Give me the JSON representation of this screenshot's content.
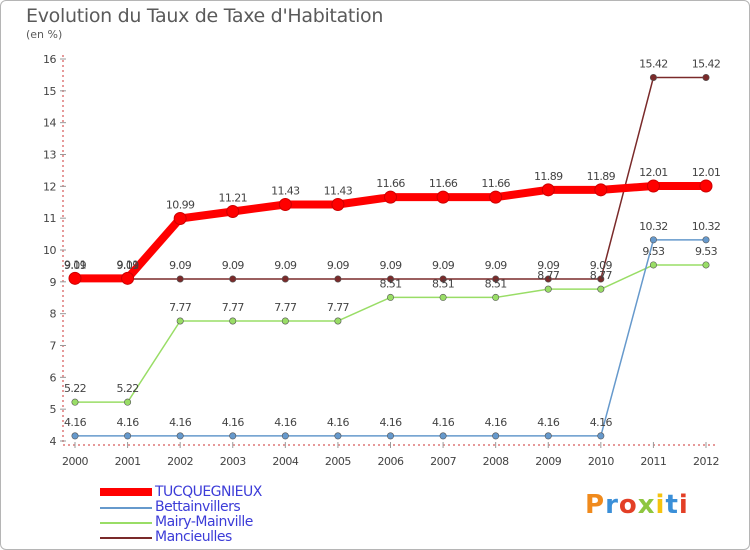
{
  "chart_data": {
    "type": "line",
    "title": "Evolution du Taux de Taxe d'Habitation",
    "subtitle": "(en %)",
    "xlabel": "",
    "ylabel": "(en %)",
    "categories": [
      "2000",
      "2001",
      "2002",
      "2003",
      "2004",
      "2005",
      "2006",
      "2007",
      "2008",
      "2009",
      "2010",
      "2011",
      "2012"
    ],
    "ylim": [
      4,
      16
    ],
    "yticks": [
      "4",
      "5",
      "6",
      "7",
      "8",
      "9",
      "10",
      "11",
      "12",
      "13",
      "14",
      "15",
      "16"
    ],
    "grid": false,
    "legend_position": "bottom-left",
    "series": [
      {
        "name": "TUCQUEGNIEUX",
        "color": "#ff0000",
        "values": [
          9.11,
          9.11,
          10.99,
          11.21,
          11.43,
          11.43,
          11.66,
          11.66,
          11.66,
          11.89,
          11.89,
          12.01,
          12.01
        ],
        "labels": [
          "9.11",
          "9.11",
          "10.99",
          "11.21",
          "11.43",
          "11.43",
          "11.66",
          "11.66",
          "11.66",
          "11.89",
          "11.89",
          "12.01",
          "12.01"
        ]
      },
      {
        "name": "Bettainvillers",
        "color": "#6699cc",
        "values": [
          4.16,
          4.16,
          4.16,
          4.16,
          4.16,
          4.16,
          4.16,
          4.16,
          4.16,
          4.16,
          4.16,
          10.32,
          10.32
        ],
        "labels": [
          "4.16",
          "4.16",
          "4.16",
          "4.16",
          "4.16",
          "4.16",
          "4.16",
          "4.16",
          "4.16",
          "4.16",
          "4.16",
          "10.32",
          "10.32"
        ]
      },
      {
        "name": "Mairy-Mainville",
        "color": "#99dd66",
        "values": [
          5.22,
          5.22,
          7.77,
          7.77,
          7.77,
          7.77,
          8.51,
          8.51,
          8.51,
          8.77,
          8.77,
          9.53,
          9.53
        ],
        "labels": [
          "5.22",
          "5.22",
          "7.77",
          "7.77",
          "7.77",
          "7.77",
          "8.51",
          "8.51",
          "8.51",
          "8.77",
          "8.77",
          "9.53",
          "9.53"
        ]
      },
      {
        "name": "Mancieulles",
        "color": "#7a2a2a",
        "values": [
          9.09,
          9.09,
          9.09,
          9.09,
          9.09,
          9.09,
          9.09,
          9.09,
          9.09,
          9.09,
          9.09,
          15.42,
          15.42
        ],
        "labels": [
          "9.09",
          "9.09",
          "9.09",
          "9.09",
          "9.09",
          "9.09",
          "9.09",
          "9.09",
          "9.09",
          "9.09",
          "9.09",
          "15.42",
          "15.42"
        ]
      }
    ]
  },
  "legend": {
    "items": [
      "TUCQUEGNIEUX",
      "Bettainvillers",
      "Mairy-Mainville",
      "Mancieulles"
    ]
  },
  "logo": {
    "text": "Proxiti",
    "colors": [
      "#f08a1c",
      "#3a8fd8",
      "#e33f26",
      "#8ec63f",
      "#f5c30f",
      "#3a8fd8",
      "#e33f26"
    ]
  }
}
